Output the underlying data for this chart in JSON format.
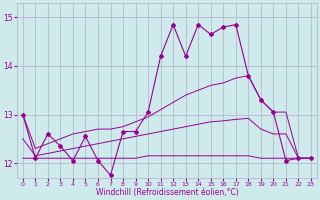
{
  "xlabel": "Windchill (Refroidissement éolien,°C)",
  "background_color": "#ceeaea",
  "grid_color": "#b0b0cc",
  "line_color": "#990099",
  "hours": [
    0,
    1,
    2,
    3,
    4,
    5,
    6,
    7,
    8,
    9,
    10,
    11,
    12,
    13,
    14,
    15,
    16,
    17,
    18,
    19,
    20,
    21,
    22,
    23
  ],
  "temp": [
    13.0,
    12.1,
    12.6,
    12.35,
    12.05,
    12.55,
    12.05,
    11.75,
    12.65,
    12.65,
    13.05,
    14.2,
    14.85,
    14.2,
    14.85,
    14.65,
    14.8,
    14.85,
    13.8,
    13.3,
    13.05,
    12.05,
    12.1,
    12.1
  ],
  "trend_upper": [
    13.0,
    12.3,
    12.4,
    12.5,
    12.6,
    12.65,
    12.7,
    12.7,
    12.75,
    12.85,
    12.95,
    13.1,
    13.25,
    13.4,
    13.5,
    13.6,
    13.65,
    13.75,
    13.8,
    13.3,
    13.05,
    13.05,
    12.1,
    12.1
  ],
  "trend_lower": [
    12.5,
    12.15,
    12.2,
    12.25,
    12.3,
    12.35,
    12.4,
    12.45,
    12.5,
    12.55,
    12.6,
    12.65,
    12.7,
    12.75,
    12.8,
    12.85,
    12.87,
    12.9,
    12.92,
    12.7,
    12.6,
    12.6,
    12.1,
    12.1
  ],
  "trend_flat": [
    12.1,
    12.1,
    12.1,
    12.1,
    12.1,
    12.1,
    12.1,
    12.1,
    12.1,
    12.1,
    12.15,
    12.15,
    12.15,
    12.15,
    12.15,
    12.15,
    12.15,
    12.15,
    12.15,
    12.1,
    12.1,
    12.1,
    12.1,
    12.1
  ],
  "ylim": [
    11.7,
    15.3
  ],
  "xlim": [
    -0.5,
    23.5
  ],
  "yticks": [
    12,
    13,
    14,
    15
  ]
}
